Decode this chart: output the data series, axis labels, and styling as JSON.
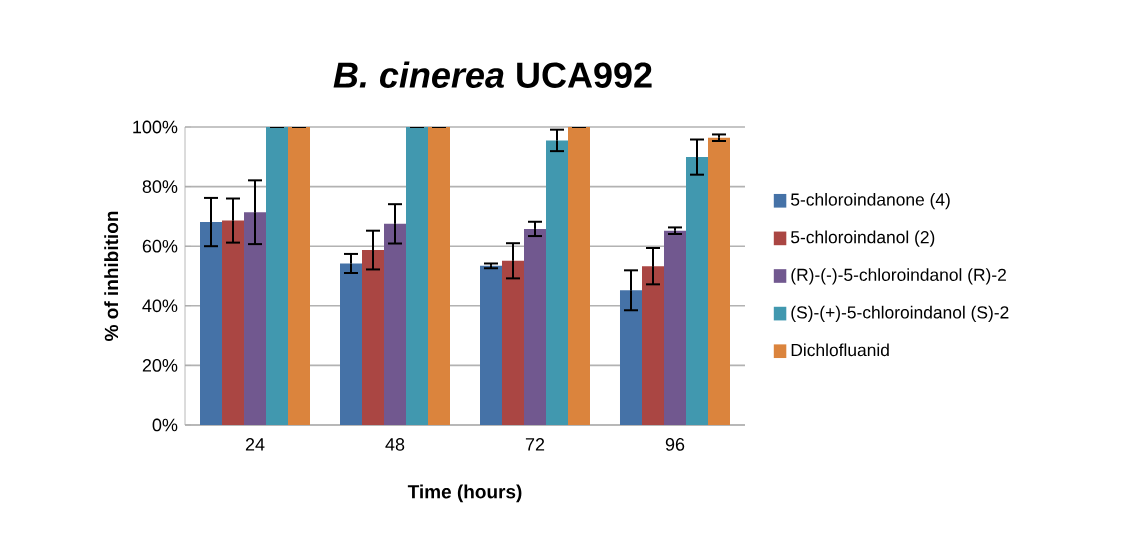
{
  "chart_data": {
    "type": "bar",
    "title": "*B. cinerea* UCA992",
    "xlabel": "Time (hours)",
    "ylabel": "% of inhibition",
    "categories": [
      "24",
      "48",
      "72",
      "96"
    ],
    "series": [
      {
        "name": "5-chloroindanone (4)",
        "color": "#4572a7",
        "values": [
          68.1,
          54.2,
          53.4,
          45.2
        ],
        "errors": [
          8.1,
          3.2,
          0.8,
          6.7
        ]
      },
      {
        "name": "5-chloroindanol (2)",
        "color": "#aa4643",
        "values": [
          68.6,
          58.7,
          55.1,
          53.3
        ],
        "errors": [
          7.4,
          6.5,
          5.9,
          6.1
        ]
      },
      {
        "name": "(R)-(-)-5-chloroindanol (R)-2",
        "color": "#71588f",
        "values": [
          71.4,
          67.5,
          65.8,
          65.2
        ],
        "errors": [
          10.7,
          6.6,
          2.4,
          1.1
        ]
      },
      {
        "name": "(S)-(+)-5-chloroindanol (S)-2",
        "color": "#4198af",
        "values": [
          100,
          100,
          95.5,
          89.9
        ],
        "errors": [
          0,
          0,
          3.6,
          5.9
        ]
      },
      {
        "name": "Dichlofluanid",
        "color": "#db843d",
        "values": [
          100,
          100,
          100,
          96.4
        ],
        "errors": [
          0,
          0,
          0,
          1.1
        ]
      }
    ],
    "ylim": [
      0,
      100
    ],
    "yticks": [
      {
        "value": 0,
        "label": "0%"
      },
      {
        "value": 20,
        "label": "20%"
      },
      {
        "value": 40,
        "label": "40%"
      },
      {
        "value": 60,
        "label": "60%"
      },
      {
        "value": 80,
        "label": "80%"
      },
      {
        "value": 100,
        "label": "100%"
      }
    ],
    "grid": "y",
    "legend": "right"
  }
}
